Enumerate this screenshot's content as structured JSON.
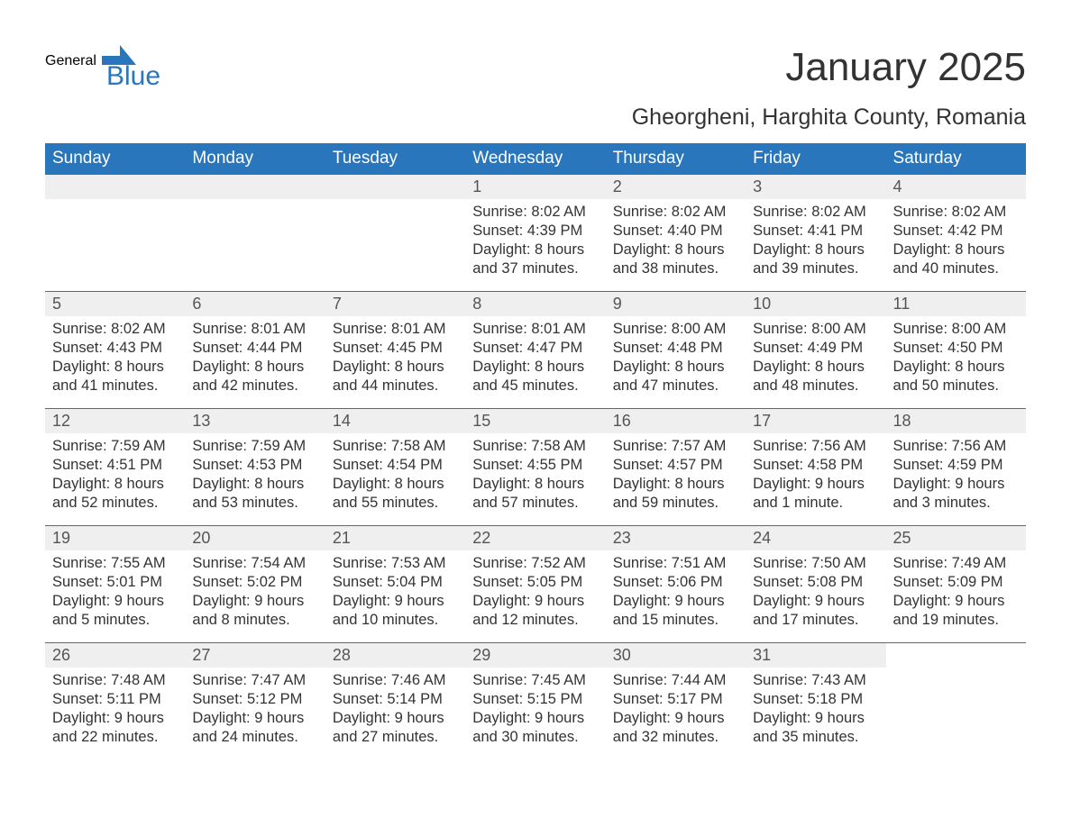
{
  "logo": {
    "general": "General",
    "blue": "Blue",
    "shape_color": "#2a76bd"
  },
  "title": "January 2025",
  "location": "Gheorgheni, Harghita County, Romania",
  "colors": {
    "header_bg": "#2a76bd",
    "header_text": "#ffffff",
    "daynum_bg": "#efefef",
    "daynum_text": "#555555",
    "body_text": "#333333",
    "cell_border": "#2a76bd",
    "page_bg": "#ffffff"
  },
  "day_headers": [
    "Sunday",
    "Monday",
    "Tuesday",
    "Wednesday",
    "Thursday",
    "Friday",
    "Saturday"
  ],
  "weeks": [
    [
      null,
      null,
      null,
      {
        "num": "1",
        "sunrise": "Sunrise: 8:02 AM",
        "sunset": "Sunset: 4:39 PM",
        "daylight1": "Daylight: 8 hours",
        "daylight2": "and 37 minutes."
      },
      {
        "num": "2",
        "sunrise": "Sunrise: 8:02 AM",
        "sunset": "Sunset: 4:40 PM",
        "daylight1": "Daylight: 8 hours",
        "daylight2": "and 38 minutes."
      },
      {
        "num": "3",
        "sunrise": "Sunrise: 8:02 AM",
        "sunset": "Sunset: 4:41 PM",
        "daylight1": "Daylight: 8 hours",
        "daylight2": "and 39 minutes."
      },
      {
        "num": "4",
        "sunrise": "Sunrise: 8:02 AM",
        "sunset": "Sunset: 4:42 PM",
        "daylight1": "Daylight: 8 hours",
        "daylight2": "and 40 minutes."
      }
    ],
    [
      {
        "num": "5",
        "sunrise": "Sunrise: 8:02 AM",
        "sunset": "Sunset: 4:43 PM",
        "daylight1": "Daylight: 8 hours",
        "daylight2": "and 41 minutes."
      },
      {
        "num": "6",
        "sunrise": "Sunrise: 8:01 AM",
        "sunset": "Sunset: 4:44 PM",
        "daylight1": "Daylight: 8 hours",
        "daylight2": "and 42 minutes."
      },
      {
        "num": "7",
        "sunrise": "Sunrise: 8:01 AM",
        "sunset": "Sunset: 4:45 PM",
        "daylight1": "Daylight: 8 hours",
        "daylight2": "and 44 minutes."
      },
      {
        "num": "8",
        "sunrise": "Sunrise: 8:01 AM",
        "sunset": "Sunset: 4:47 PM",
        "daylight1": "Daylight: 8 hours",
        "daylight2": "and 45 minutes."
      },
      {
        "num": "9",
        "sunrise": "Sunrise: 8:00 AM",
        "sunset": "Sunset: 4:48 PM",
        "daylight1": "Daylight: 8 hours",
        "daylight2": "and 47 minutes."
      },
      {
        "num": "10",
        "sunrise": "Sunrise: 8:00 AM",
        "sunset": "Sunset: 4:49 PM",
        "daylight1": "Daylight: 8 hours",
        "daylight2": "and 48 minutes."
      },
      {
        "num": "11",
        "sunrise": "Sunrise: 8:00 AM",
        "sunset": "Sunset: 4:50 PM",
        "daylight1": "Daylight: 8 hours",
        "daylight2": "and 50 minutes."
      }
    ],
    [
      {
        "num": "12",
        "sunrise": "Sunrise: 7:59 AM",
        "sunset": "Sunset: 4:51 PM",
        "daylight1": "Daylight: 8 hours",
        "daylight2": "and 52 minutes."
      },
      {
        "num": "13",
        "sunrise": "Sunrise: 7:59 AM",
        "sunset": "Sunset: 4:53 PM",
        "daylight1": "Daylight: 8 hours",
        "daylight2": "and 53 minutes."
      },
      {
        "num": "14",
        "sunrise": "Sunrise: 7:58 AM",
        "sunset": "Sunset: 4:54 PM",
        "daylight1": "Daylight: 8 hours",
        "daylight2": "and 55 minutes."
      },
      {
        "num": "15",
        "sunrise": "Sunrise: 7:58 AM",
        "sunset": "Sunset: 4:55 PM",
        "daylight1": "Daylight: 8 hours",
        "daylight2": "and 57 minutes."
      },
      {
        "num": "16",
        "sunrise": "Sunrise: 7:57 AM",
        "sunset": "Sunset: 4:57 PM",
        "daylight1": "Daylight: 8 hours",
        "daylight2": "and 59 minutes."
      },
      {
        "num": "17",
        "sunrise": "Sunrise: 7:56 AM",
        "sunset": "Sunset: 4:58 PM",
        "daylight1": "Daylight: 9 hours",
        "daylight2": "and 1 minute."
      },
      {
        "num": "18",
        "sunrise": "Sunrise: 7:56 AM",
        "sunset": "Sunset: 4:59 PM",
        "daylight1": "Daylight: 9 hours",
        "daylight2": "and 3 minutes."
      }
    ],
    [
      {
        "num": "19",
        "sunrise": "Sunrise: 7:55 AM",
        "sunset": "Sunset: 5:01 PM",
        "daylight1": "Daylight: 9 hours",
        "daylight2": "and 5 minutes."
      },
      {
        "num": "20",
        "sunrise": "Sunrise: 7:54 AM",
        "sunset": "Sunset: 5:02 PM",
        "daylight1": "Daylight: 9 hours",
        "daylight2": "and 8 minutes."
      },
      {
        "num": "21",
        "sunrise": "Sunrise: 7:53 AM",
        "sunset": "Sunset: 5:04 PM",
        "daylight1": "Daylight: 9 hours",
        "daylight2": "and 10 minutes."
      },
      {
        "num": "22",
        "sunrise": "Sunrise: 7:52 AM",
        "sunset": "Sunset: 5:05 PM",
        "daylight1": "Daylight: 9 hours",
        "daylight2": "and 12 minutes."
      },
      {
        "num": "23",
        "sunrise": "Sunrise: 7:51 AM",
        "sunset": "Sunset: 5:06 PM",
        "daylight1": "Daylight: 9 hours",
        "daylight2": "and 15 minutes."
      },
      {
        "num": "24",
        "sunrise": "Sunrise: 7:50 AM",
        "sunset": "Sunset: 5:08 PM",
        "daylight1": "Daylight: 9 hours",
        "daylight2": "and 17 minutes."
      },
      {
        "num": "25",
        "sunrise": "Sunrise: 7:49 AM",
        "sunset": "Sunset: 5:09 PM",
        "daylight1": "Daylight: 9 hours",
        "daylight2": "and 19 minutes."
      }
    ],
    [
      {
        "num": "26",
        "sunrise": "Sunrise: 7:48 AM",
        "sunset": "Sunset: 5:11 PM",
        "daylight1": "Daylight: 9 hours",
        "daylight2": "and 22 minutes."
      },
      {
        "num": "27",
        "sunrise": "Sunrise: 7:47 AM",
        "sunset": "Sunset: 5:12 PM",
        "daylight1": "Daylight: 9 hours",
        "daylight2": "and 24 minutes."
      },
      {
        "num": "28",
        "sunrise": "Sunrise: 7:46 AM",
        "sunset": "Sunset: 5:14 PM",
        "daylight1": "Daylight: 9 hours",
        "daylight2": "and 27 minutes."
      },
      {
        "num": "29",
        "sunrise": "Sunrise: 7:45 AM",
        "sunset": "Sunset: 5:15 PM",
        "daylight1": "Daylight: 9 hours",
        "daylight2": "and 30 minutes."
      },
      {
        "num": "30",
        "sunrise": "Sunrise: 7:44 AM",
        "sunset": "Sunset: 5:17 PM",
        "daylight1": "Daylight: 9 hours",
        "daylight2": "and 32 minutes."
      },
      {
        "num": "31",
        "sunrise": "Sunrise: 7:43 AM",
        "sunset": "Sunset: 5:18 PM",
        "daylight1": "Daylight: 9 hours",
        "daylight2": "and 35 minutes."
      },
      null
    ]
  ]
}
